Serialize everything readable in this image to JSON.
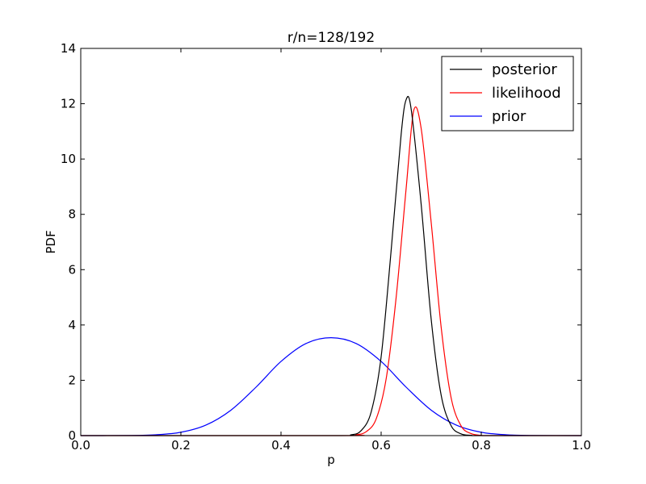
{
  "chart_data": {
    "type": "line",
    "title": "r/n=128/192",
    "xlabel": "p",
    "ylabel": "PDF",
    "xlim": [
      0.0,
      1.0
    ],
    "ylim": [
      0,
      14
    ],
    "xticks": [
      "0.0",
      "0.2",
      "0.4",
      "0.6",
      "0.8",
      "1.0"
    ],
    "yticks": [
      "0",
      "2",
      "4",
      "6",
      "8",
      "10",
      "12",
      "14"
    ],
    "grid": false,
    "legend_position": "top-right",
    "series": [
      {
        "name": "posterior",
        "color": "#000000",
        "x": [
          0.0,
          0.5,
          0.54,
          0.56,
          0.58,
          0.6,
          0.62,
          0.64,
          0.65,
          0.66,
          0.68,
          0.7,
          0.72,
          0.74,
          0.76,
          0.78,
          0.8,
          1.0
        ],
        "y": [
          0,
          0,
          0.03,
          0.18,
          0.85,
          2.85,
          6.7,
          10.9,
          12.15,
          11.8,
          8.35,
          4.2,
          1.45,
          0.35,
          0.06,
          0.01,
          0,
          0
        ]
      },
      {
        "name": "likelihood",
        "color": "#ff0000",
        "x": [
          0.0,
          0.52,
          0.55,
          0.57,
          0.59,
          0.61,
          0.63,
          0.65,
          0.665,
          0.68,
          0.7,
          0.72,
          0.74,
          0.76,
          0.78,
          0.8,
          0.82,
          1.0
        ],
        "y": [
          0,
          0,
          0.03,
          0.14,
          0.6,
          2.05,
          5.0,
          8.95,
          11.75,
          11.1,
          7.7,
          3.9,
          1.35,
          0.34,
          0.07,
          0.01,
          0,
          0
        ]
      },
      {
        "name": "prior",
        "color": "#0000ff",
        "x": [
          0.0,
          0.1,
          0.15,
          0.2,
          0.25,
          0.3,
          0.35,
          0.4,
          0.45,
          0.5,
          0.55,
          0.6,
          0.65,
          0.7,
          0.75,
          0.8,
          0.85,
          0.9,
          1.0
        ],
        "y": [
          0,
          0.005,
          0.03,
          0.12,
          0.38,
          0.92,
          1.75,
          2.68,
          3.33,
          3.54,
          3.33,
          2.68,
          1.75,
          0.92,
          0.38,
          0.12,
          0.03,
          0.005,
          0
        ]
      }
    ]
  }
}
